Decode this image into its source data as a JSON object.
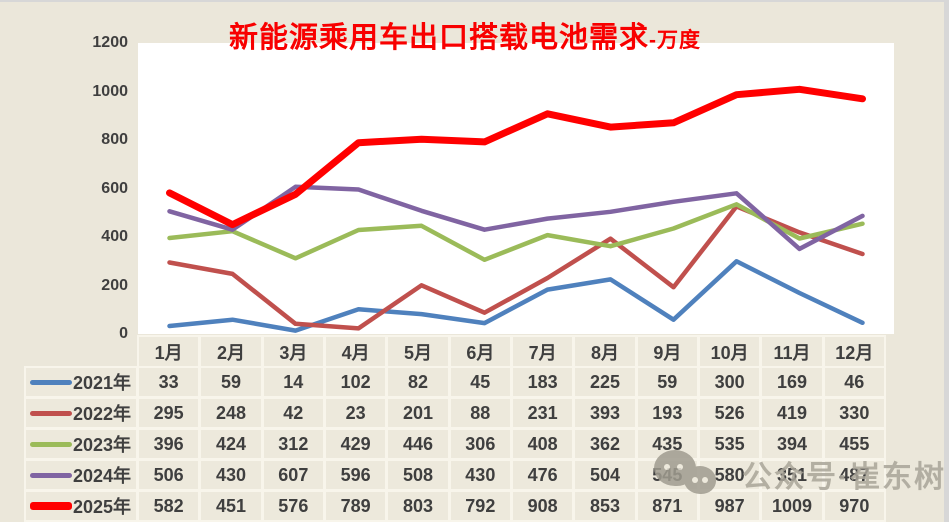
{
  "title": {
    "main": "新能源乘用车出口搭载电池需求",
    "unit_suffix": "-万度",
    "color": "#F80000"
  },
  "watermark": {
    "text": "公众号·崔东树",
    "icon": "wechat-bubbles-icon"
  },
  "colors": {
    "background": "#EBE7DA",
    "plot_background": "#FFFFFF",
    "edge_gray": "#D7D7D7",
    "table_cell_background": "#EDE9DC",
    "table_border": "#F8F5EB",
    "text": "#3F3F3F"
  },
  "chart_data": {
    "type": "line",
    "title": "新能源乘用车出口搭载电池需求-万度",
    "categories": [
      "1月",
      "2月",
      "3月",
      "4月",
      "5月",
      "6月",
      "7月",
      "8月",
      "9月",
      "10月",
      "11月",
      "12月"
    ],
    "series": [
      {
        "name": "2021年",
        "color": "#4F81BD",
        "stroke_width": 4.5,
        "values": [
          33,
          59,
          14,
          102,
          82,
          45,
          183,
          225,
          59,
          300,
          169,
          46
        ]
      },
      {
        "name": "2022年",
        "color": "#C0504D",
        "stroke_width": 4.5,
        "values": [
          295,
          248,
          42,
          23,
          201,
          88,
          231,
          393,
          193,
          526,
          419,
          330
        ]
      },
      {
        "name": "2023年",
        "color": "#9BBB59",
        "stroke_width": 4.5,
        "values": [
          396,
          424,
          312,
          429,
          446,
          306,
          408,
          362,
          435,
          535,
          394,
          455
        ]
      },
      {
        "name": "2024年",
        "color": "#8064A2",
        "stroke_width": 4.5,
        "values": [
          506,
          430,
          607,
          596,
          508,
          430,
          476,
          504,
          545,
          580,
          351,
          487
        ]
      },
      {
        "name": "2025年",
        "color": "#FF0000",
        "stroke_width": 7,
        "values": [
          582,
          451,
          576,
          789,
          803,
          792,
          908,
          853,
          871,
          987,
          1009,
          970
        ]
      }
    ],
    "ylim": [
      0,
      1200
    ],
    "yticks": [
      1200,
      1000,
      800,
      600,
      400,
      200,
      0
    ],
    "grid": false,
    "markers": false,
    "legend_position": "table-left-column",
    "xlabel": "",
    "ylabel": ""
  }
}
